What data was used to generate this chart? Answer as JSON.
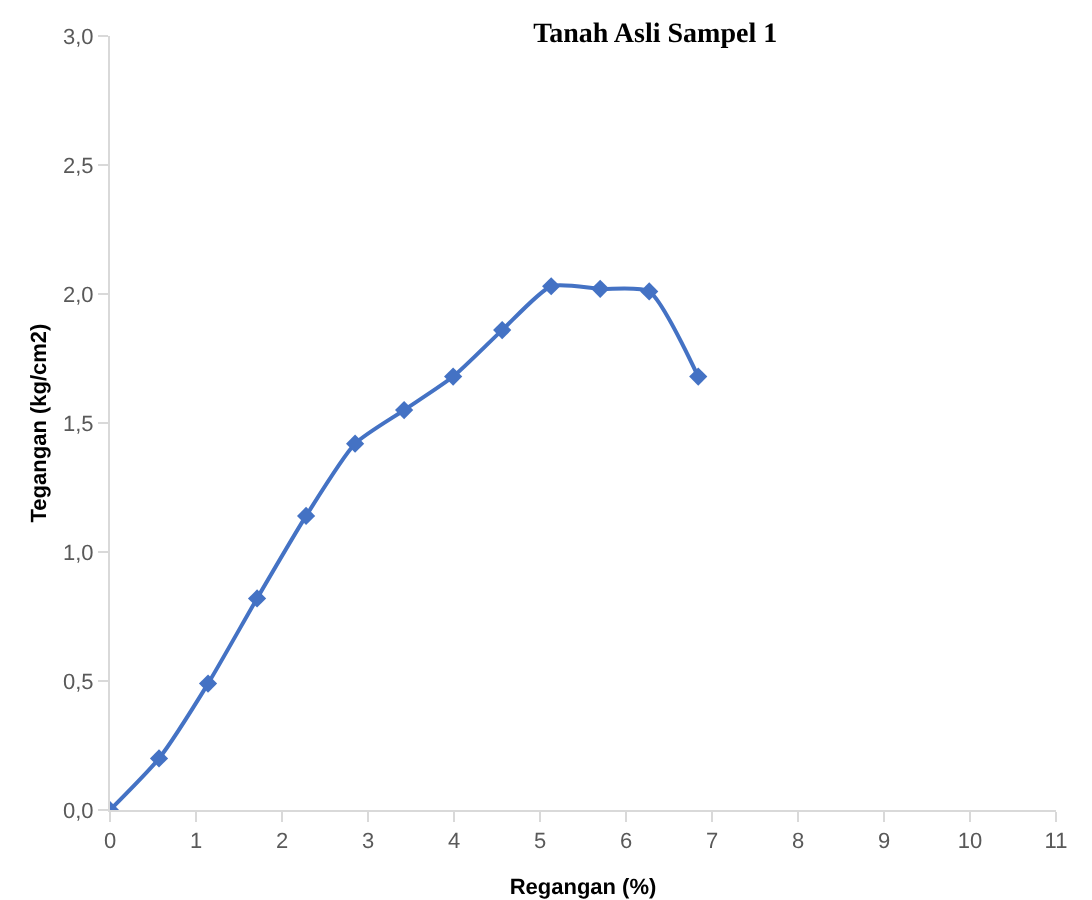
{
  "chart_data": {
    "type": "line",
    "title": "Tanah Asli Sampel 1",
    "xlabel": "Regangan (%)",
    "ylabel": "Tegangan (kg/cm2)",
    "x": [
      0,
      0.57,
      1.14,
      1.71,
      2.28,
      2.85,
      3.42,
      3.99,
      4.56,
      5.13,
      5.7,
      6.27,
      6.84
    ],
    "series": [
      {
        "color": "#4472c4",
        "values": [
          0,
          0.2,
          0.49,
          0.82,
          1.14,
          1.42,
          1.55,
          1.68,
          1.86,
          2.03,
          2.02,
          2.01,
          1.68
        ]
      }
    ],
    "xlim": [
      0,
      11
    ],
    "xticks": [
      0,
      1,
      2,
      3,
      4,
      5,
      6,
      7,
      8,
      9,
      10,
      11
    ],
    "ylim": [
      0,
      3
    ],
    "yticks": [
      {
        "value": 0,
        "label": "0,0"
      },
      {
        "value": 0.5,
        "label": "0,5"
      },
      {
        "value": 1,
        "label": "1,0"
      },
      {
        "value": 1.5,
        "label": "1,5"
      },
      {
        "value": 2,
        "label": "2,0"
      },
      {
        "value": 2.5,
        "label": "2,5"
      },
      {
        "value": 3,
        "label": "3,0"
      }
    ],
    "grid": false,
    "marker": "diamond",
    "line_style": "solid"
  }
}
